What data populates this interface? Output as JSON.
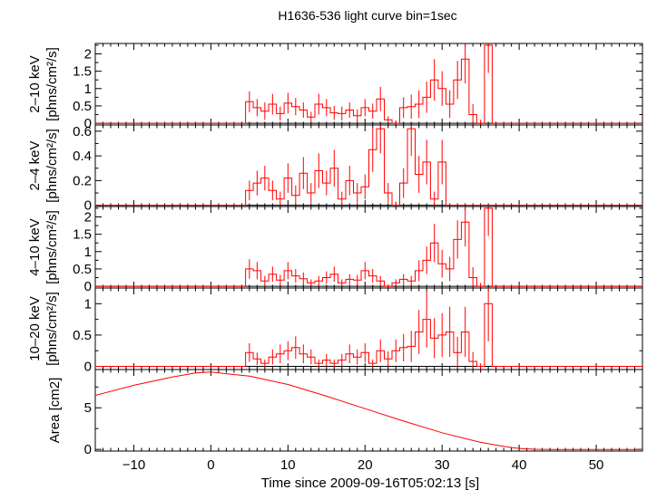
{
  "colors": {
    "series": "#ff0000",
    "axis": "#000000",
    "background": "#ffffff"
  },
  "chart_data": {
    "type": "line",
    "title": "H1636-536 light curve bin=1sec",
    "xlabel": "Time since 2009-09-16T05:02:13 [s]",
    "xlim": [
      -15,
      56
    ],
    "xticks": [
      -10,
      0,
      10,
      20,
      30,
      40,
      50
    ],
    "x_tick_labels": [
      "−10",
      "0",
      "10",
      "20",
      "30",
      "40",
      "50"
    ],
    "grid": false,
    "legend": "none",
    "panels": [
      {
        "name": "2-10 keV",
        "ylabel_top": "2–10 keV",
        "ylabel_bottom": "[phns/cm²/s]",
        "ylim": [
          -0.05,
          2.3
        ],
        "yticks": [
          0,
          0.5,
          1,
          1.5,
          2
        ],
        "y_tick_labels": [
          "0",
          "0.5",
          "1",
          "1.5",
          "2"
        ],
        "x": [
          5,
          6,
          7,
          8,
          9,
          10,
          11,
          12,
          13,
          14,
          15,
          16,
          17,
          18,
          19,
          20,
          21,
          22,
          23,
          24,
          25,
          26,
          27,
          28,
          29,
          30,
          31,
          32,
          33,
          34,
          35,
          36
        ],
        "y": [
          0.62,
          0.45,
          0.35,
          0.55,
          0.28,
          0.58,
          0.48,
          0.38,
          0.18,
          0.55,
          0.45,
          0.3,
          0.28,
          0.38,
          0.22,
          0.45,
          0.35,
          0.7,
          0.1,
          0.0,
          0.45,
          0.48,
          0.55,
          0.75,
          1.25,
          1.0,
          0.55,
          1.25,
          1.85,
          0.25,
          0.0,
          2.25
        ],
        "err": [
          0.3,
          0.25,
          0.25,
          0.3,
          0.2,
          0.3,
          0.25,
          0.22,
          0.15,
          0.3,
          0.25,
          0.2,
          0.2,
          0.22,
          0.18,
          0.25,
          0.22,
          0.35,
          0.1,
          0.08,
          0.3,
          0.35,
          0.4,
          0.45,
          0.6,
          0.5,
          0.4,
          0.55,
          0.7,
          0.3,
          0.1,
          0.8
        ]
      },
      {
        "name": "2-4 keV",
        "ylabel_top": "2–4 keV",
        "ylabel_bottom": "[phns/cm²/s]",
        "ylim": [
          -0.01,
          0.65
        ],
        "yticks": [
          0,
          0.2,
          0.4,
          0.6
        ],
        "y_tick_labels": [
          "0",
          "0.2",
          "0.4",
          "0.6"
        ],
        "x": [
          5,
          6,
          7,
          8,
          9,
          10,
          11,
          12,
          13,
          14,
          15,
          16,
          17,
          18,
          19,
          20,
          21,
          22,
          23,
          24,
          25,
          26,
          27,
          28,
          29,
          30
        ],
        "y": [
          0.12,
          0.18,
          0.22,
          0.12,
          0.05,
          0.22,
          0.08,
          0.26,
          0.1,
          0.28,
          0.18,
          0.3,
          0.05,
          0.2,
          0.1,
          0.15,
          0.45,
          0.62,
          0.1,
          0.0,
          0.18,
          0.62,
          0.25,
          0.35,
          0.05,
          0.35
        ],
        "err": [
          0.08,
          0.1,
          0.1,
          0.08,
          0.06,
          0.12,
          0.08,
          0.13,
          0.08,
          0.14,
          0.1,
          0.15,
          0.06,
          0.12,
          0.08,
          0.1,
          0.18,
          0.2,
          0.08,
          0.03,
          0.12,
          0.22,
          0.15,
          0.18,
          0.06,
          0.18
        ]
      },
      {
        "name": "4-10 keV",
        "ylabel_top": "4–10 keV",
        "ylabel_bottom": "[phns/cm²/s]",
        "ylim": [
          -0.05,
          2.3
        ],
        "yticks": [
          0,
          0.5,
          1,
          1.5,
          2
        ],
        "y_tick_labels": [
          "0",
          "0.5",
          "1",
          "1.5",
          "2"
        ],
        "x": [
          5,
          6,
          7,
          8,
          9,
          10,
          11,
          12,
          13,
          14,
          15,
          16,
          17,
          18,
          19,
          20,
          21,
          22,
          23,
          24,
          25,
          26,
          27,
          28,
          29,
          30,
          31,
          32,
          33,
          34,
          35,
          36
        ],
        "y": [
          0.5,
          0.45,
          0.15,
          0.35,
          0.18,
          0.45,
          0.3,
          0.22,
          0.1,
          0.15,
          0.25,
          0.35,
          0.1,
          0.2,
          0.18,
          0.45,
          0.3,
          0.15,
          0.0,
          0.1,
          0.2,
          0.15,
          0.45,
          0.75,
          1.25,
          0.65,
          0.5,
          1.35,
          1.85,
          0.25,
          0.0,
          2.25
        ],
        "err": [
          0.28,
          0.25,
          0.15,
          0.22,
          0.15,
          0.25,
          0.2,
          0.18,
          0.1,
          0.15,
          0.18,
          0.22,
          0.1,
          0.15,
          0.15,
          0.25,
          0.2,
          0.15,
          0.05,
          0.1,
          0.15,
          0.15,
          0.3,
          0.4,
          0.55,
          0.4,
          0.35,
          0.55,
          0.7,
          0.3,
          0.1,
          0.8
        ]
      },
      {
        "name": "10-20 keV",
        "ylabel_top": "10–20 keV",
        "ylabel_bottom": "[phns/cm²/s]",
        "ylim": [
          -0.05,
          1.25
        ],
        "yticks": [
          0,
          0.5,
          1
        ],
        "y_tick_labels": [
          "0",
          "0.5",
          "1"
        ],
        "x": [
          5,
          6,
          7,
          8,
          9,
          10,
          11,
          12,
          13,
          14,
          15,
          16,
          17,
          18,
          19,
          20,
          21,
          22,
          23,
          24,
          25,
          26,
          27,
          28,
          29,
          30,
          31,
          32,
          33,
          34,
          35,
          36
        ],
        "y": [
          0.22,
          0.12,
          0.05,
          0.15,
          0.2,
          0.25,
          0.3,
          0.2,
          0.15,
          0.05,
          0.1,
          0.05,
          0.1,
          0.2,
          0.15,
          0.22,
          0.05,
          0.25,
          0.12,
          0.25,
          0.3,
          0.32,
          0.55,
          0.75,
          0.45,
          0.5,
          0.55,
          0.22,
          0.55,
          0.08,
          0.0,
          1.0
        ],
        "err": [
          0.15,
          0.1,
          0.06,
          0.12,
          0.15,
          0.15,
          0.18,
          0.15,
          0.12,
          0.06,
          0.1,
          0.06,
          0.1,
          0.15,
          0.12,
          0.15,
          0.06,
          0.18,
          0.12,
          0.18,
          0.22,
          0.25,
          0.35,
          0.45,
          0.32,
          0.35,
          0.4,
          0.25,
          0.4,
          0.15,
          0.05,
          0.6
        ]
      },
      {
        "name": "Area",
        "ylabel_top": "Area [cm2]",
        "ylabel_bottom": "",
        "ylim": [
          -0.2,
          9.6
        ],
        "yticks": [
          0,
          5
        ],
        "y_tick_labels": [
          "0",
          "5"
        ],
        "curve": {
          "x": [
            -15,
            -10,
            -5,
            -2,
            0,
            5,
            10,
            15,
            20,
            25,
            30,
            35,
            38,
            40,
            42,
            44,
            48,
            52,
            56
          ],
          "y": [
            6.5,
            7.7,
            8.7,
            9.2,
            9.3,
            8.8,
            7.8,
            6.4,
            4.9,
            3.4,
            2.0,
            0.85,
            0.35,
            0.12,
            0.02,
            0.0,
            0.0,
            0.0,
            0.0
          ]
        }
      }
    ]
  }
}
